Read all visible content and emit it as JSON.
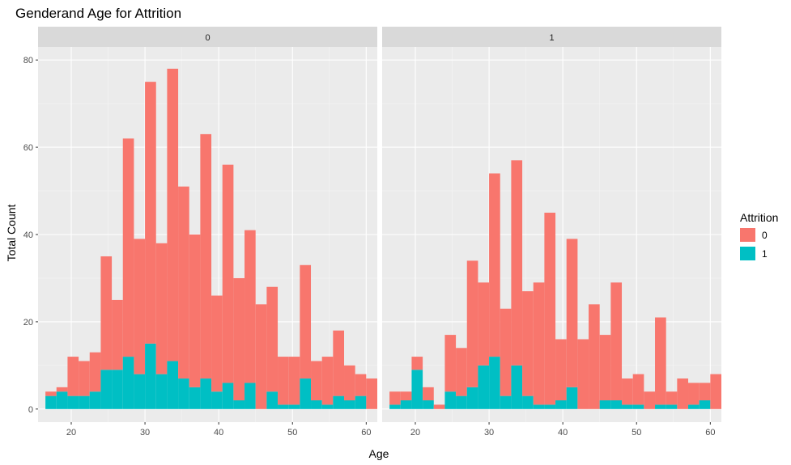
{
  "chart_data": {
    "type": "bar",
    "title": "Genderand Age for Attrition",
    "xlabel": "Age",
    "ylabel": "Total Count",
    "xlim": [
      15.5,
      61.5
    ],
    "ylim": [
      -3,
      83
    ],
    "xticks": [
      20,
      30,
      40,
      50,
      60
    ],
    "yticks": [
      0,
      20,
      40,
      60,
      80
    ],
    "grid": true,
    "bin_width": 1.5,
    "legend": {
      "title": "Attrition",
      "position": "right",
      "entries": [
        {
          "label": "0",
          "color": "#F8766D"
        },
        {
          "label": "1",
          "color": "#00BFC4"
        }
      ]
    },
    "panels": [
      {
        "label": "0",
        "bins": [
          {
            "x": 17.25,
            "counts": [
              1,
              3
            ]
          },
          {
            "x": 18.75,
            "counts": [
              1,
              4
            ]
          },
          {
            "x": 20.25,
            "counts": [
              9,
              3
            ]
          },
          {
            "x": 21.75,
            "counts": [
              8,
              3
            ]
          },
          {
            "x": 23.25,
            "counts": [
              9,
              4
            ]
          },
          {
            "x": 24.75,
            "counts": [
              26,
              9
            ]
          },
          {
            "x": 26.25,
            "counts": [
              16,
              9
            ]
          },
          {
            "x": 27.75,
            "counts": [
              50,
              12
            ]
          },
          {
            "x": 29.25,
            "counts": [
              31,
              8
            ]
          },
          {
            "x": 30.75,
            "counts": [
              60,
              15
            ]
          },
          {
            "x": 32.25,
            "counts": [
              30,
              8
            ]
          },
          {
            "x": 33.75,
            "counts": [
              67,
              11
            ]
          },
          {
            "x": 35.25,
            "counts": [
              44,
              7
            ]
          },
          {
            "x": 36.75,
            "counts": [
              35,
              5
            ]
          },
          {
            "x": 38.25,
            "counts": [
              56,
              7
            ]
          },
          {
            "x": 39.75,
            "counts": [
              22,
              4
            ]
          },
          {
            "x": 41.25,
            "counts": [
              50,
              6
            ]
          },
          {
            "x": 42.75,
            "counts": [
              28,
              2
            ]
          },
          {
            "x": 44.25,
            "counts": [
              35,
              6
            ]
          },
          {
            "x": 45.75,
            "counts": [
              24,
              0
            ]
          },
          {
            "x": 47.25,
            "counts": [
              24,
              4
            ]
          },
          {
            "x": 48.75,
            "counts": [
              11,
              1
            ]
          },
          {
            "x": 50.25,
            "counts": [
              11,
              1
            ]
          },
          {
            "x": 51.75,
            "counts": [
              26,
              7
            ]
          },
          {
            "x": 53.25,
            "counts": [
              9,
              2
            ]
          },
          {
            "x": 54.75,
            "counts": [
              11,
              1
            ]
          },
          {
            "x": 56.25,
            "counts": [
              15,
              3
            ]
          },
          {
            "x": 57.75,
            "counts": [
              8,
              2
            ]
          },
          {
            "x": 59.25,
            "counts": [
              5,
              3
            ]
          },
          {
            "x": 60.75,
            "counts": [
              7,
              0
            ]
          }
        ]
      },
      {
        "label": "1",
        "bins": [
          {
            "x": 17.25,
            "counts": [
              3,
              1
            ]
          },
          {
            "x": 18.75,
            "counts": [
              2,
              2
            ]
          },
          {
            "x": 20.25,
            "counts": [
              3,
              9
            ]
          },
          {
            "x": 21.75,
            "counts": [
              3,
              2
            ]
          },
          {
            "x": 23.25,
            "counts": [
              1,
              0
            ]
          },
          {
            "x": 24.75,
            "counts": [
              13,
              4
            ]
          },
          {
            "x": 26.25,
            "counts": [
              11,
              3
            ]
          },
          {
            "x": 27.75,
            "counts": [
              29,
              5
            ]
          },
          {
            "x": 29.25,
            "counts": [
              19,
              10
            ]
          },
          {
            "x": 30.75,
            "counts": [
              42,
              12
            ]
          },
          {
            "x": 32.25,
            "counts": [
              20,
              3
            ]
          },
          {
            "x": 33.75,
            "counts": [
              47,
              10
            ]
          },
          {
            "x": 35.25,
            "counts": [
              24,
              3
            ]
          },
          {
            "x": 36.75,
            "counts": [
              28,
              1
            ]
          },
          {
            "x": 38.25,
            "counts": [
              44,
              1
            ]
          },
          {
            "x": 39.75,
            "counts": [
              14,
              2
            ]
          },
          {
            "x": 41.25,
            "counts": [
              34,
              5
            ]
          },
          {
            "x": 42.75,
            "counts": [
              16,
              0
            ]
          },
          {
            "x": 44.25,
            "counts": [
              24,
              0
            ]
          },
          {
            "x": 45.75,
            "counts": [
              15,
              2
            ]
          },
          {
            "x": 47.25,
            "counts": [
              27,
              2
            ]
          },
          {
            "x": 48.75,
            "counts": [
              6,
              1
            ]
          },
          {
            "x": 50.25,
            "counts": [
              7,
              1
            ]
          },
          {
            "x": 51.75,
            "counts": [
              4,
              0
            ]
          },
          {
            "x": 53.25,
            "counts": [
              20,
              1
            ]
          },
          {
            "x": 54.75,
            "counts": [
              3,
              1
            ]
          },
          {
            "x": 56.25,
            "counts": [
              7,
              0
            ]
          },
          {
            "x": 57.75,
            "counts": [
              5,
              1
            ]
          },
          {
            "x": 59.25,
            "counts": [
              4,
              2
            ]
          },
          {
            "x": 60.75,
            "counts": [
              8,
              0
            ]
          }
        ]
      }
    ]
  }
}
